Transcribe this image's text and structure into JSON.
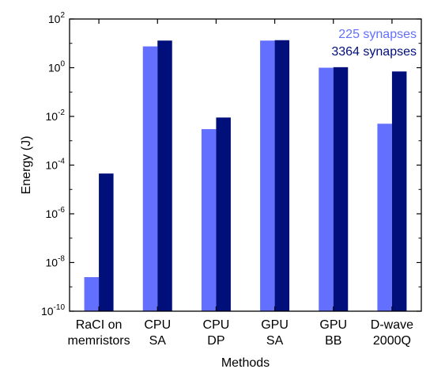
{
  "chart_data": {
    "type": "bar",
    "title": "",
    "xlabel": "Methods",
    "ylabel": "Energy (J)",
    "yscale": "log",
    "ylim": [
      1e-10,
      100
    ],
    "y_ticks": [
      {
        "value": 1e-10,
        "base": "10",
        "exp": "-10"
      },
      {
        "value": 1e-08,
        "base": "10",
        "exp": "-8"
      },
      {
        "value": 1e-06,
        "base": "10",
        "exp": "-6"
      },
      {
        "value": 0.0001,
        "base": "10",
        "exp": "-4"
      },
      {
        "value": 0.01,
        "base": "10",
        "exp": "-2"
      },
      {
        "value": 1,
        "base": "10",
        "exp": "0"
      },
      {
        "value": 100,
        "base": "10",
        "exp": "2"
      }
    ],
    "categories": [
      [
        "RaCI on",
        "memristors"
      ],
      [
        "CPU",
        "SA"
      ],
      [
        "CPU",
        "DP"
      ],
      [
        "GPU",
        "SA"
      ],
      [
        "GPU",
        "BB"
      ],
      [
        "D-wave",
        "2000Q"
      ]
    ],
    "series": [
      {
        "name": "225 synapses",
        "color": "#6370ff",
        "values": [
          2.5e-09,
          7.5,
          0.003,
          13,
          1.0,
          0.005
        ]
      },
      {
        "name": "3364 synapses",
        "color": "#000f7a",
        "values": [
          4.5e-05,
          13,
          0.009,
          13.5,
          1.05,
          0.7
        ]
      }
    ],
    "legend": "top-right",
    "grid": false
  }
}
